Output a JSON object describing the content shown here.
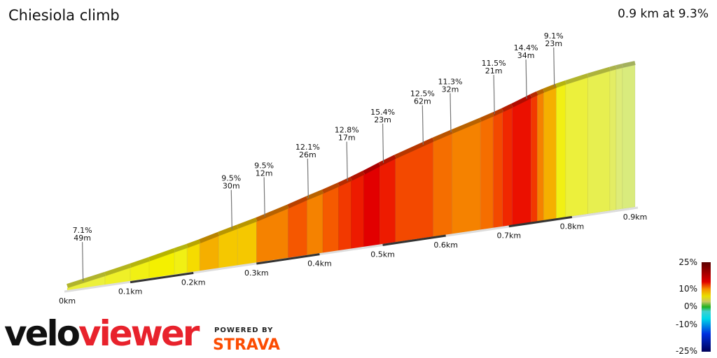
{
  "title": "Chiesiola climb",
  "summary": "0.9 km at 9.3%",
  "brand": {
    "veloviewer_a": "velo",
    "veloviewer_b": "viewer",
    "powered_by": "POWERED BY",
    "strava": "STRAVA"
  },
  "chart_data": {
    "type": "area",
    "x_unit": "km",
    "x_ticks": [
      "0km",
      "0.1km",
      "0.2km",
      "0.3km",
      "0.4km",
      "0.5km",
      "0.6km",
      "0.7km",
      "0.8km",
      "0.9km"
    ],
    "total_km": 0.9,
    "segments": [
      [
        0,
        0.06,
        7
      ],
      [
        0.06,
        0.1,
        7.5
      ],
      [
        0.1,
        0.13,
        8
      ],
      [
        0.13,
        0.17,
        8.5
      ],
      [
        0.17,
        0.19,
        8
      ],
      [
        0.19,
        0.21,
        9
      ],
      [
        0.21,
        0.24,
        10
      ],
      [
        0.24,
        0.27,
        9.5
      ],
      [
        0.27,
        0.3,
        9.5
      ],
      [
        0.3,
        0.35,
        11
      ],
      [
        0.35,
        0.38,
        12.1
      ],
      [
        0.38,
        0.405,
        11
      ],
      [
        0.405,
        0.43,
        12
      ],
      [
        0.43,
        0.45,
        13
      ],
      [
        0.45,
        0.47,
        14
      ],
      [
        0.47,
        0.495,
        15.4
      ],
      [
        0.495,
        0.52,
        14
      ],
      [
        0.52,
        0.58,
        12.5
      ],
      [
        0.58,
        0.61,
        11.5
      ],
      [
        0.61,
        0.655,
        11
      ],
      [
        0.655,
        0.675,
        11.5
      ],
      [
        0.675,
        0.69,
        12.5
      ],
      [
        0.69,
        0.705,
        13.5
      ],
      [
        0.705,
        0.735,
        14.4
      ],
      [
        0.735,
        0.745,
        13
      ],
      [
        0.745,
        0.755,
        11
      ],
      [
        0.755,
        0.775,
        10
      ],
      [
        0.775,
        0.79,
        8
      ],
      [
        0.79,
        0.825,
        7
      ],
      [
        0.825,
        0.86,
        6
      ],
      [
        0.86,
        0.87,
        5
      ],
      [
        0.87,
        0.88,
        4
      ],
      [
        0.88,
        0.9,
        3
      ]
    ],
    "annotations": [
      {
        "km": 0.024,
        "grade": "7.1%",
        "length": "49m"
      },
      {
        "km": 0.26,
        "grade": "9.5%",
        "length": "30m"
      },
      {
        "km": 0.312,
        "grade": "9.5%",
        "length": "12m"
      },
      {
        "km": 0.381,
        "grade": "12.1%",
        "length": "26m"
      },
      {
        "km": 0.443,
        "grade": "12.8%",
        "length": "17m"
      },
      {
        "km": 0.5,
        "grade": "15.4%",
        "length": "23m"
      },
      {
        "km": 0.563,
        "grade": "12.5%",
        "length": "62m"
      },
      {
        "km": 0.607,
        "grade": "11.3%",
        "length": "32m"
      },
      {
        "km": 0.676,
        "grade": "11.5%",
        "length": "21m"
      },
      {
        "km": 0.727,
        "grade": "14.4%",
        "length": "34m"
      },
      {
        "km": 0.771,
        "grade": "9.1%",
        "length": "23m"
      }
    ],
    "legend": {
      "labels": [
        "25%",
        "10%",
        "0%",
        "-10%",
        "-25%"
      ],
      "colors": [
        "#5a0000",
        "#e00000",
        "#f59000",
        "#e8e000",
        "#c8c860",
        "#20b020",
        "#40d0d0",
        "#00d8e8",
        "#0030e0",
        "#00005a"
      ]
    }
  }
}
